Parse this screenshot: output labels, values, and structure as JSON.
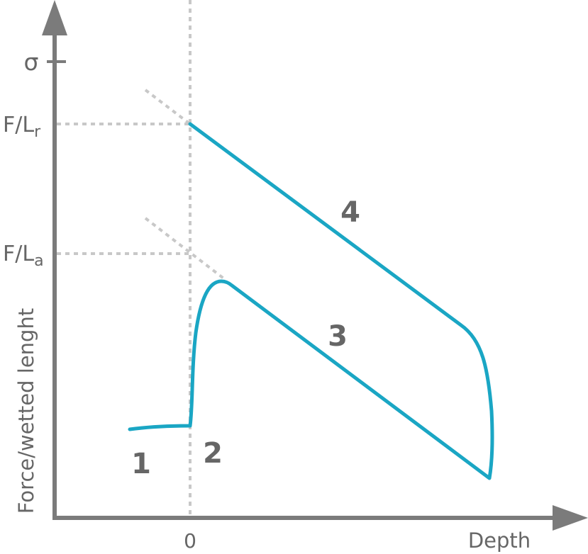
{
  "axes": {
    "x_label": "Depth",
    "y_label": "Force/wetted lenght",
    "x_tick_zero": "0",
    "y_tick_sigma": "σ",
    "y_tick_f_lr": {
      "base": "F/L",
      "sub": "r"
    },
    "y_tick_f_la": {
      "base": "F/L",
      "sub": "a"
    }
  },
  "phase_labels": [
    "1",
    "2",
    "3",
    "4"
  ],
  "colors": {
    "axis": "#7b7b7b",
    "curve": "#1aa6c4",
    "dotted": "#c8c8c8",
    "text": "#666666"
  }
}
